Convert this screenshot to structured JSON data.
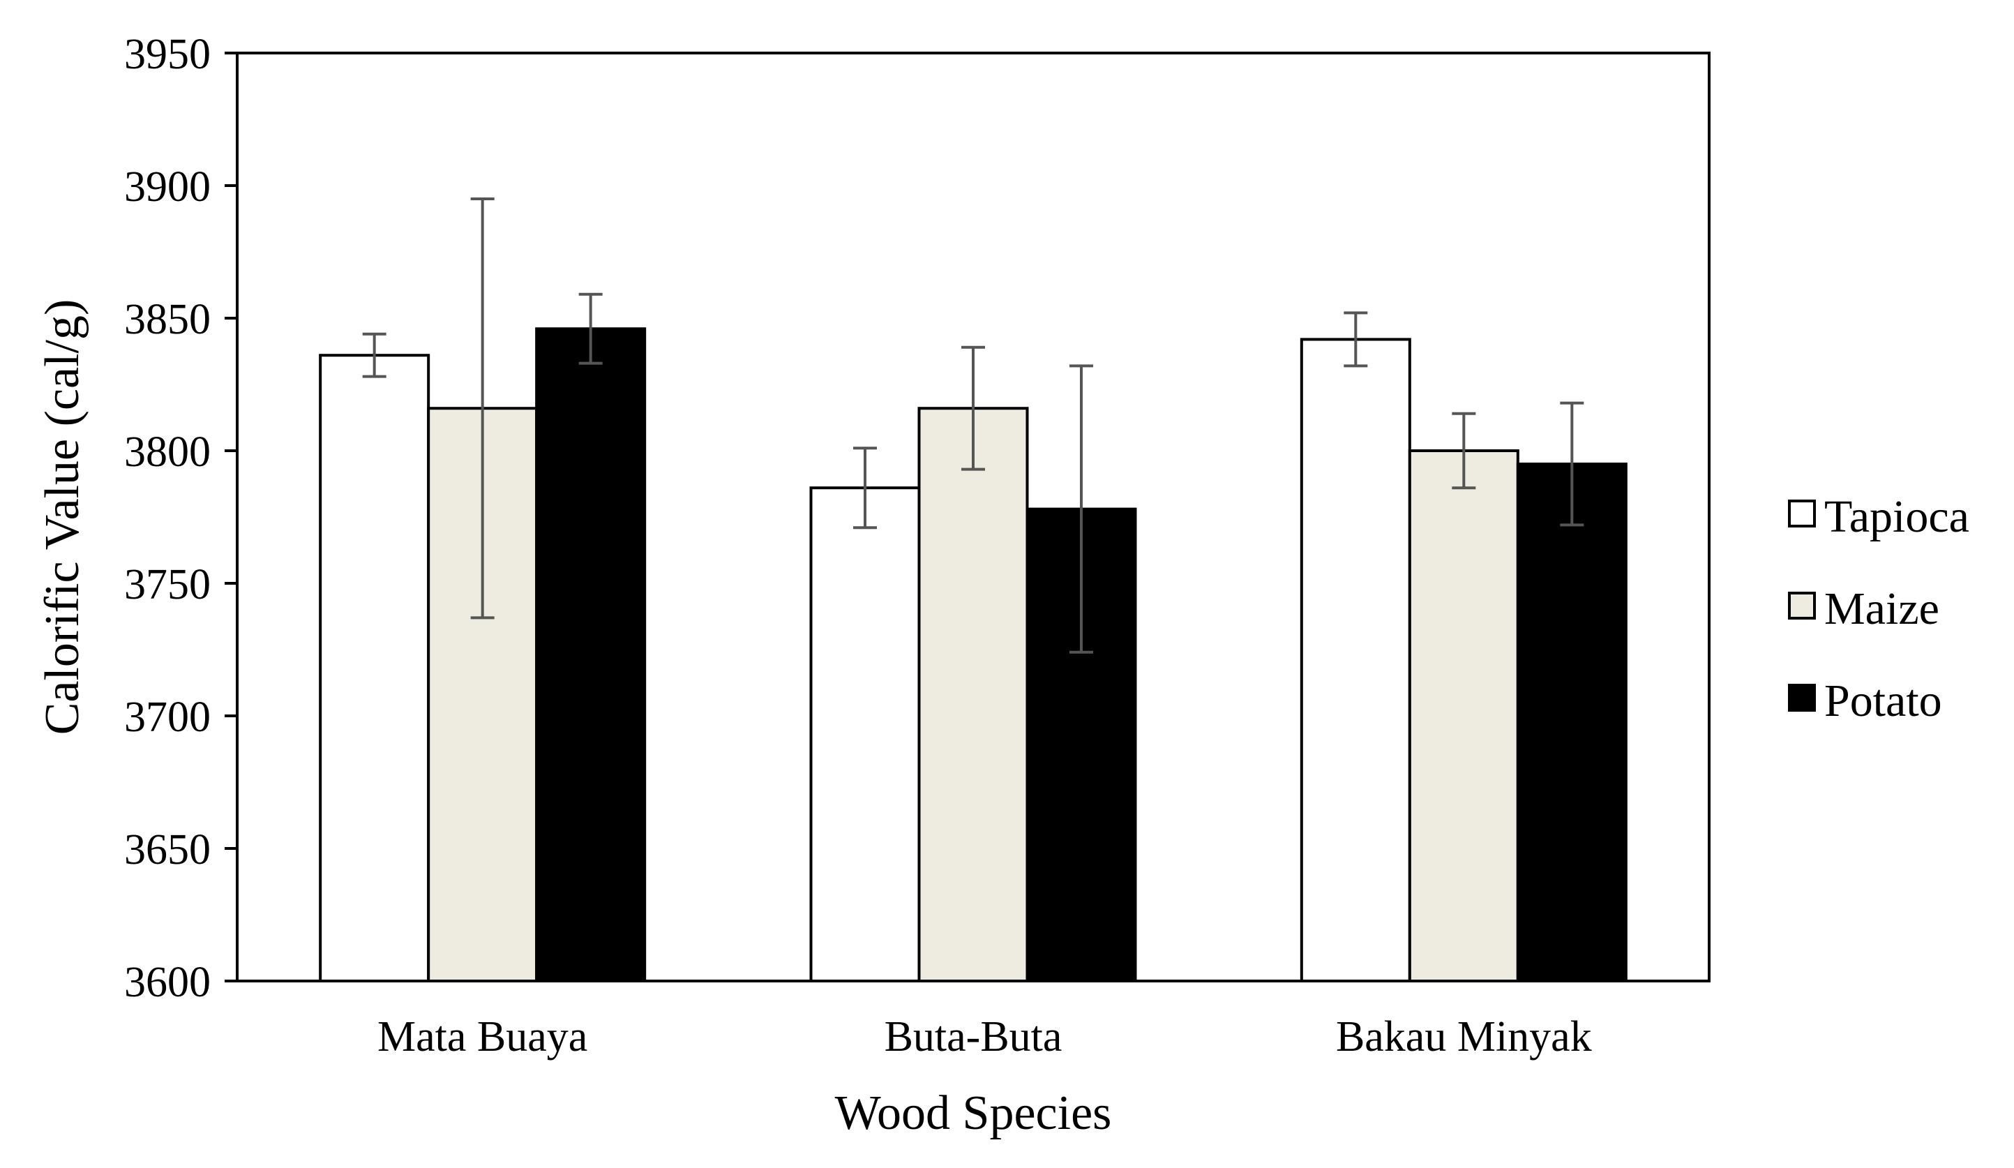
{
  "chart_data": {
    "type": "bar",
    "title": "",
    "xlabel": "Wood Species",
    "ylabel": "Calorific Value (cal/g)",
    "ylim": [
      3600,
      3950
    ],
    "yticks": [
      3600,
      3650,
      3700,
      3750,
      3800,
      3850,
      3900,
      3950
    ],
    "categories": [
      "Mata Buaya",
      "Buta-Buta",
      "Bakau Minyak"
    ],
    "series": [
      {
        "name": "Tapioca",
        "color": "#ffffff",
        "values": [
          3836,
          3786,
          3842
        ],
        "errors": [
          8,
          15,
          10
        ]
      },
      {
        "name": "Maize",
        "color": "#eeebe0",
        "values": [
          3816,
          3816,
          3800
        ],
        "errors": [
          79,
          23,
          14
        ]
      },
      {
        "name": "Potato",
        "color": "#000000",
        "values": [
          3846,
          3778,
          3795
        ],
        "errors": [
          13,
          54,
          23
        ]
      }
    ],
    "error_bar_color": "#555555",
    "grid": false,
    "legend_position": "right"
  }
}
